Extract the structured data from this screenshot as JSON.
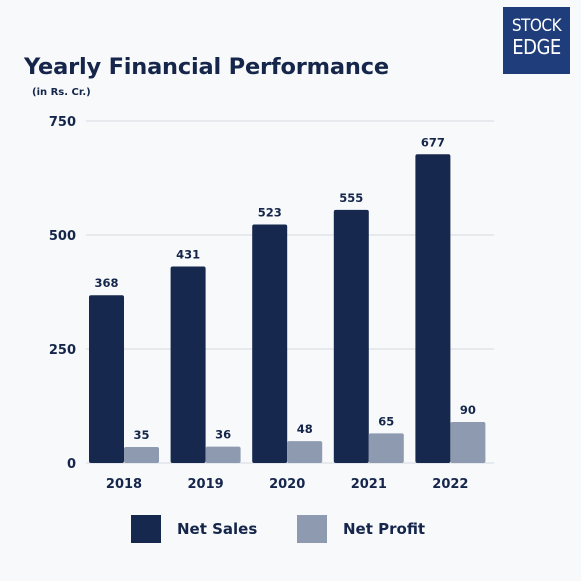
{
  "title": "Yearly Financial Performance",
  "subtitle": "(in Rs. Cr.)",
  "logo": {
    "line1": "STOCK",
    "line2": "EDGE"
  },
  "colors": {
    "net_sales": "#16284d",
    "net_profit": "#8d9ab0",
    "text": "#15264a",
    "logo_bg": "#1f3d7a"
  },
  "chart_data": {
    "type": "bar",
    "title": "Yearly Financial Performance",
    "subtitle": "(in Rs. Cr.)",
    "categories": [
      "2018",
      "2019",
      "2020",
      "2021",
      "2022"
    ],
    "series": [
      {
        "name": "Net Sales",
        "values": [
          368,
          431,
          523,
          555,
          677
        ],
        "color": "#16284d"
      },
      {
        "name": "Net Profit",
        "values": [
          35,
          36,
          48,
          65,
          90
        ],
        "color": "#8d9ab0"
      }
    ],
    "ylim": [
      0,
      750
    ],
    "yticks": [
      0,
      250,
      500,
      750
    ],
    "grid": true,
    "legend": "bottom"
  }
}
